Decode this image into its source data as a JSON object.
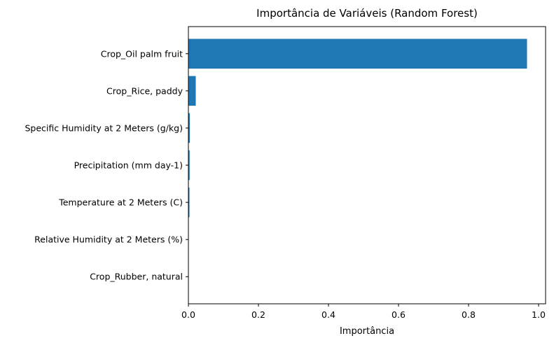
{
  "chart_data": {
    "type": "bar",
    "orientation": "horizontal",
    "title": "Importância de Variáveis (Random Forest)",
    "xlabel": "Importância",
    "ylabel": "",
    "categories": [
      "Crop_Oil palm fruit",
      "Crop_Rice, paddy",
      "Specific Humidity at 2 Meters (g/kg)",
      "Precipitation (mm day-1)",
      "Temperature at 2 Meters (C)",
      "Relative Humidity at 2 Meters (%)",
      "Crop_Rubber, natural"
    ],
    "values": [
      0.967,
      0.021,
      0.004,
      0.0035,
      0.003,
      0.0005,
      0.0002
    ],
    "xlim": [
      0,
      1.02
    ],
    "xticks": [
      0,
      0.2,
      0.4,
      0.6,
      0.8,
      1.0
    ],
    "xtick_labels": [
      "0.0",
      "0.2",
      "0.4",
      "0.6",
      "0.8",
      "1.0"
    ],
    "bar_color": "#1f77b4",
    "grid": false,
    "legend": "none"
  }
}
